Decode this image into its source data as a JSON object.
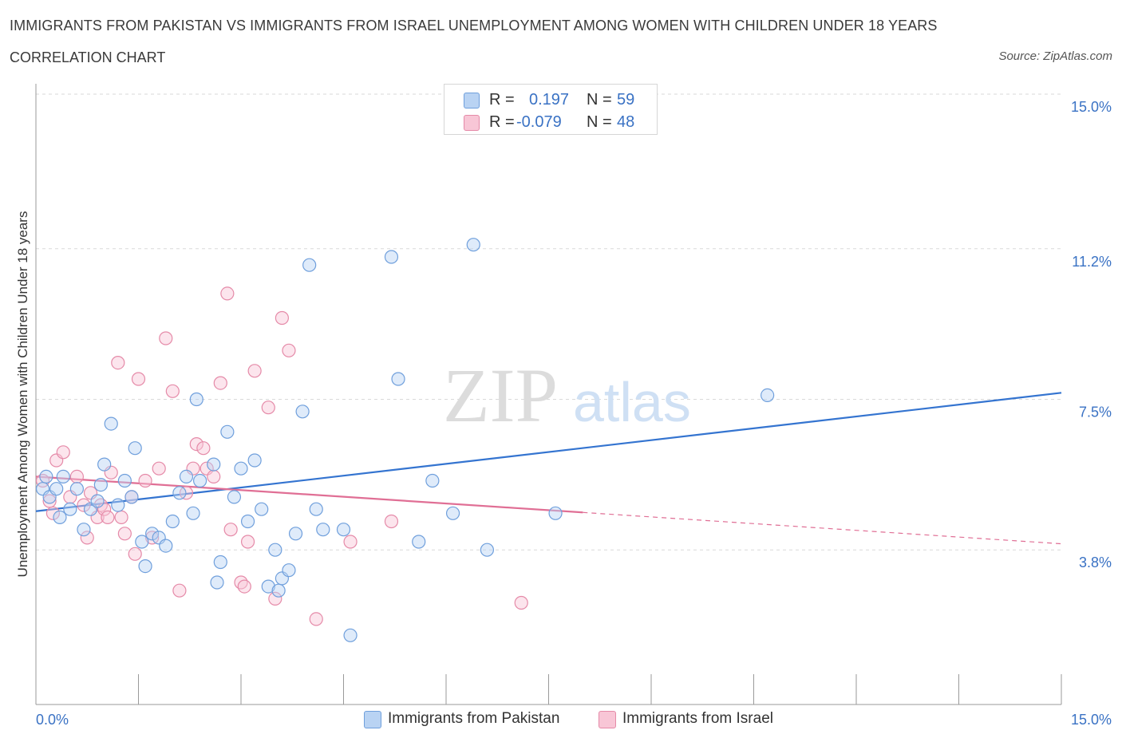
{
  "header": {
    "title": "IMMIGRANTS FROM PAKISTAN VS IMMIGRANTS FROM ISRAEL UNEMPLOYMENT AMONG WOMEN WITH CHILDREN UNDER 18 YEARS",
    "subtitle": "CORRELATION CHART",
    "source": "Source: ZipAtlas.com"
  },
  "watermark": {
    "zip": "ZIP",
    "atlas": "atlas"
  },
  "legend": {
    "r_label": "R =",
    "n_label": "N =",
    "pakistan": {
      "r": "0.197",
      "n": "59"
    },
    "israel": {
      "r": "-0.079",
      "n": "48"
    }
  },
  "colors": {
    "pakistan_fill": "#b9d3f3",
    "pakistan_stroke": "#6f9fdc",
    "pakistan_line": "#3474d0",
    "israel_fill": "#f8c6d6",
    "israel_stroke": "#e58aa8",
    "israel_line": "#e06f95",
    "grid": "#d9d9d9",
    "tick_label": "#3a72c4"
  },
  "chart_data": {
    "type": "scatter",
    "title": "IMMIGRANTS FROM PAKISTAN VS IMMIGRANTS FROM ISRAEL UNEMPLOYMENT AMONG WOMEN WITH CHILDREN UNDER 18 YEARS",
    "subtitle": "CORRELATION CHART",
    "ylabel": "Unemployment Among Women with Children Under 18 years",
    "xlabel": "",
    "xlim": [
      0,
      15
    ],
    "ylim": [
      0,
      15
    ],
    "x_tick_labels": [
      "0.0%",
      "15.0%"
    ],
    "y_ticks": [
      {
        "value": 3.8,
        "label": "3.8%"
      },
      {
        "value": 7.5,
        "label": "7.5%"
      },
      {
        "value": 11.2,
        "label": "11.2%"
      },
      {
        "value": 15.0,
        "label": "15.0%"
      }
    ],
    "grid": true,
    "legend_position": "top-center",
    "series": [
      {
        "name": "Immigrants from Pakistan",
        "r": 0.197,
        "n": 59,
        "trend": {
          "x": [
            0,
            15
          ],
          "y": [
            4.75,
            7.66
          ]
        },
        "points": [
          [
            0.1,
            5.3
          ],
          [
            0.15,
            5.6
          ],
          [
            0.2,
            5.1
          ],
          [
            0.3,
            5.3
          ],
          [
            0.35,
            4.6
          ],
          [
            0.4,
            5.6
          ],
          [
            0.5,
            4.8
          ],
          [
            0.6,
            5.3
          ],
          [
            0.7,
            4.3
          ],
          [
            0.8,
            4.8
          ],
          [
            0.9,
            5.0
          ],
          [
            0.95,
            5.4
          ],
          [
            1.0,
            5.9
          ],
          [
            1.1,
            6.9
          ],
          [
            1.2,
            4.9
          ],
          [
            1.3,
            5.5
          ],
          [
            1.4,
            5.1
          ],
          [
            1.45,
            6.3
          ],
          [
            1.55,
            4.0
          ],
          [
            1.6,
            3.4
          ],
          [
            1.7,
            4.2
          ],
          [
            1.8,
            4.1
          ],
          [
            1.9,
            3.9
          ],
          [
            2.0,
            4.5
          ],
          [
            2.1,
            5.2
          ],
          [
            2.2,
            5.6
          ],
          [
            2.3,
            4.7
          ],
          [
            2.35,
            7.5
          ],
          [
            2.4,
            5.5
          ],
          [
            2.6,
            5.9
          ],
          [
            2.65,
            3.0
          ],
          [
            2.7,
            3.5
          ],
          [
            2.8,
            6.7
          ],
          [
            2.9,
            5.1
          ],
          [
            3.0,
            5.8
          ],
          [
            3.1,
            4.5
          ],
          [
            3.2,
            6.0
          ],
          [
            3.3,
            4.8
          ],
          [
            3.4,
            2.9
          ],
          [
            3.5,
            3.8
          ],
          [
            3.55,
            2.8
          ],
          [
            3.6,
            3.1
          ],
          [
            3.7,
            3.3
          ],
          [
            3.8,
            4.2
          ],
          [
            3.9,
            7.2
          ],
          [
            4.0,
            10.8
          ],
          [
            4.1,
            4.8
          ],
          [
            4.2,
            4.3
          ],
          [
            4.5,
            4.3
          ],
          [
            4.6,
            1.7
          ],
          [
            5.2,
            11.0
          ],
          [
            5.3,
            8.0
          ],
          [
            5.6,
            4.0
          ],
          [
            5.8,
            5.5
          ],
          [
            6.1,
            4.7
          ],
          [
            6.4,
            11.3
          ],
          [
            6.6,
            3.8
          ],
          [
            7.6,
            4.7
          ],
          [
            10.7,
            7.6
          ]
        ]
      },
      {
        "name": "Immigrants from Israel",
        "r": -0.079,
        "n": 48,
        "trend": {
          "x": [
            0,
            15
          ],
          "y": [
            5.6,
            3.95
          ],
          "solid_until_x": 8.0
        },
        "points": [
          [
            0.1,
            5.5
          ],
          [
            0.2,
            5.0
          ],
          [
            0.25,
            4.7
          ],
          [
            0.3,
            6.0
          ],
          [
            0.4,
            6.2
          ],
          [
            0.5,
            5.1
          ],
          [
            0.6,
            5.6
          ],
          [
            0.7,
            4.9
          ],
          [
            0.75,
            4.1
          ],
          [
            0.8,
            5.2
          ],
          [
            0.9,
            4.6
          ],
          [
            0.95,
            4.9
          ],
          [
            1.0,
            4.8
          ],
          [
            1.05,
            4.6
          ],
          [
            1.1,
            5.7
          ],
          [
            1.2,
            8.4
          ],
          [
            1.25,
            4.6
          ],
          [
            1.3,
            4.2
          ],
          [
            1.4,
            5.1
          ],
          [
            1.45,
            3.7
          ],
          [
            1.5,
            8.0
          ],
          [
            1.6,
            5.5
          ],
          [
            1.7,
            4.1
          ],
          [
            1.8,
            5.8
          ],
          [
            1.9,
            9.0
          ],
          [
            2.0,
            7.7
          ],
          [
            2.1,
            2.8
          ],
          [
            2.2,
            5.2
          ],
          [
            2.3,
            5.8
          ],
          [
            2.35,
            6.4
          ],
          [
            2.45,
            6.3
          ],
          [
            2.5,
            5.8
          ],
          [
            2.6,
            5.6
          ],
          [
            2.7,
            7.9
          ],
          [
            2.8,
            10.1
          ],
          [
            2.85,
            4.3
          ],
          [
            3.0,
            3.0
          ],
          [
            3.1,
            4.0
          ],
          [
            3.2,
            8.2
          ],
          [
            3.4,
            7.3
          ],
          [
            3.5,
            2.6
          ],
          [
            3.6,
            9.5
          ],
          [
            3.7,
            8.7
          ],
          [
            4.1,
            2.1
          ],
          [
            4.6,
            4.0
          ],
          [
            5.2,
            4.5
          ],
          [
            7.1,
            2.5
          ],
          [
            3.05,
            2.9
          ]
        ]
      }
    ]
  },
  "bottom_legend": {
    "pakistan": "Immigrants from Pakistan",
    "israel": "Immigrants from Israel"
  }
}
